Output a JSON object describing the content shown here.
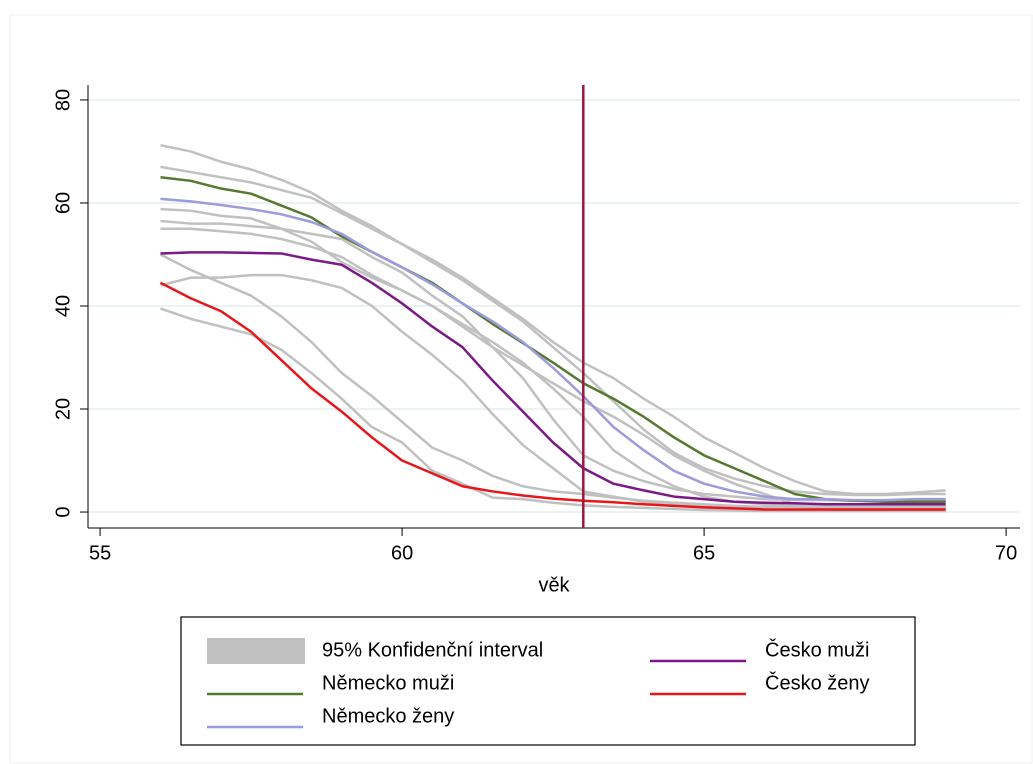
{
  "chart_data": {
    "type": "line",
    "x_label": "věk",
    "x": [
      56,
      56.5,
      57,
      57.5,
      58,
      58.5,
      59,
      59.5,
      60,
      60.5,
      61,
      61.5,
      62,
      62.5,
      63,
      63.5,
      64,
      64.5,
      65,
      65.5,
      66,
      66.5,
      67,
      67.5,
      68,
      68.5,
      69
    ],
    "xlim": [
      54.8,
      70.23
    ],
    "ylim": [
      -3.1,
      82.9
    ],
    "xticks": [
      55,
      60,
      65,
      70
    ],
    "yticks": [
      0,
      20,
      40,
      60,
      80
    ],
    "grid": true,
    "xline": {
      "value": 63,
      "color": "#a0153e"
    },
    "ci": {
      "name": "95% Konfidenční interval",
      "color": "#c0c0c0",
      "bands": [
        {
          "lower": [
            58.8,
            58.5,
            57.5,
            57,
            55,
            52.5,
            48.5,
            45.5,
            43,
            40,
            36,
            32,
            28.5,
            25,
            21.5,
            18.5,
            15,
            11,
            8,
            5.5,
            3.5,
            1.5,
            1,
            0.8,
            0.8,
            0.8,
            0.8
          ],
          "upper": [
            71.2,
            70,
            68,
            66.5,
            64.5,
            62,
            58.5,
            55.5,
            52,
            49,
            45.5,
            41.5,
            37.5,
            33,
            29,
            26,
            22,
            18.5,
            14.5,
            11.5,
            8.5,
            6,
            4,
            3.5,
            3.5,
            3.8,
            4.2
          ]
        },
        {
          "lower": [
            55,
            55,
            54.5,
            54,
            53,
            51.5,
            49.5,
            46,
            43,
            40,
            36.5,
            33,
            29,
            24,
            18.5,
            12,
            8,
            5,
            3,
            2,
            1.5,
            1.2,
            1,
            1,
            1,
            1.2,
            1.2
          ],
          "upper": [
            67,
            66,
            65,
            64,
            62.5,
            61,
            58,
            55,
            52,
            48.5,
            45,
            41,
            37,
            32,
            27,
            21.5,
            16,
            11.5,
            8.5,
            6.5,
            5,
            4,
            3.5,
            3.3,
            3.3,
            3.5,
            3.5
          ]
        },
        {
          "lower": [
            44,
            45.5,
            45.5,
            46,
            46,
            45,
            43.5,
            40,
            35,
            30.5,
            25.5,
            19,
            13,
            8.5,
            4,
            3,
            2,
            1.5,
            1.2,
            1,
            1,
            1,
            0.8,
            0.8,
            0.8,
            0.8,
            0.8
          ],
          "upper": [
            56.5,
            56,
            56,
            55.5,
            55,
            54,
            53,
            49.5,
            46.5,
            42,
            38,
            32,
            26,
            18,
            11,
            8,
            6,
            4.5,
            3.5,
            3,
            2.5,
            2.3,
            2.3,
            2.2,
            2.2,
            2.2,
            2.2
          ]
        },
        {
          "lower": [
            39.5,
            37.5,
            36,
            34.5,
            31.5,
            27,
            22,
            16.5,
            13.5,
            8,
            5.5,
            2.8,
            2.5,
            1.8,
            1.3,
            1,
            0.8,
            0.6,
            0.4,
            0.3,
            0.2,
            0.2,
            0.2,
            0.2,
            0.2,
            0.2,
            0.2
          ],
          "upper": [
            50,
            47,
            44.5,
            42,
            38,
            33,
            27,
            22.5,
            17.5,
            12.5,
            10,
            7,
            5,
            4,
            3.5,
            2.8,
            2.2,
            1.8,
            1.5,
            1.2,
            1,
            1,
            0.9,
            0.9,
            0.9,
            0.9,
            0.9
          ]
        }
      ]
    },
    "series": [
      {
        "name": "Německo muži",
        "color": "#557a2f",
        "values": [
          65,
          64.3,
          62.8,
          61.8,
          59.5,
          57.2,
          53.5,
          50.5,
          47.5,
          44.5,
          40.5,
          36.5,
          32.8,
          29,
          25,
          22,
          18.5,
          14.5,
          11,
          8.5,
          6,
          3.5,
          2.5,
          2.2,
          2,
          2,
          2
        ]
      },
      {
        "name": "Německo ženy",
        "color": "#9b9bdd",
        "values": [
          60.8,
          60.3,
          59.6,
          58.8,
          57.8,
          56.3,
          54,
          50.5,
          47.5,
          44.2,
          40.5,
          37,
          33,
          28,
          22.5,
          16.5,
          12,
          8,
          5.5,
          4,
          3,
          2.5,
          2.5,
          2.3,
          2.3,
          2.5,
          2.5
        ]
      },
      {
        "name": "Česko muži",
        "color": "#7b1a86",
        "values": [
          50.2,
          50.4,
          50.4,
          50.3,
          50.2,
          49,
          48,
          44.5,
          40.5,
          36,
          32,
          25.5,
          19.5,
          13.5,
          8.5,
          5.5,
          4.2,
          3,
          2.5,
          2,
          1.8,
          1.7,
          1.5,
          1.5,
          1.5,
          1.5,
          1.5
        ]
      },
      {
        "name": "Česko ženy",
        "color": "#e8161a",
        "values": [
          44.5,
          41.5,
          39,
          35,
          29.5,
          24,
          19.5,
          14.5,
          10,
          7.5,
          5,
          4,
          3.2,
          2.6,
          2.2,
          1.9,
          1.5,
          1.2,
          0.9,
          0.7,
          0.5,
          0.5,
          0.5,
          0.5,
          0.5,
          0.5,
          0.5
        ]
      }
    ]
  }
}
